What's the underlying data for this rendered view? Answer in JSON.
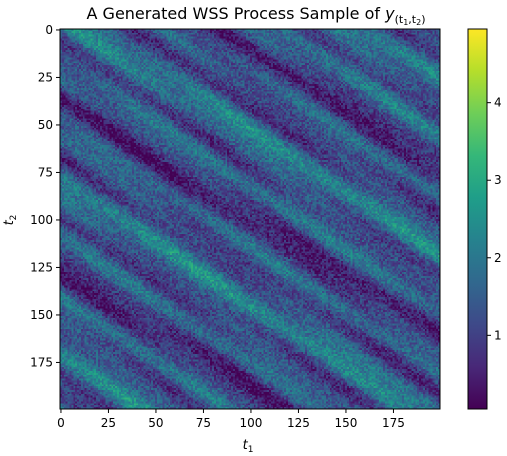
{
  "chart_data": {
    "type": "heatmap",
    "title": {
      "prefix": "A Generated WSS Process Sample of ",
      "var": "y",
      "sub": "(t",
      "sub1": "1",
      "comma": ",t",
      "sub2": "2",
      "close": ")"
    },
    "xlabel": {
      "var": "t",
      "sub": "1"
    },
    "ylabel": {
      "var": "t",
      "sub": "2"
    },
    "xlim": [
      0,
      199
    ],
    "ylim": [
      0,
      199
    ],
    "y_inverted": true,
    "xticks": [
      0,
      25,
      50,
      75,
      100,
      125,
      150,
      175
    ],
    "yticks": [
      0,
      25,
      50,
      75,
      100,
      125,
      150,
      175
    ],
    "colormap": "viridis",
    "colorbar": {
      "min": 0.05,
      "max": 4.95,
      "ticks": [
        1,
        2,
        3,
        4
      ]
    },
    "grid": false,
    "pattern": "diagonal streaks running from upper-left to lower-right; values mostly between 0.5 and 2.5 with occasional peaks near 3"
  },
  "colors": {
    "viridis": [
      "#440154",
      "#482878",
      "#3e4989",
      "#31688e",
      "#26828e",
      "#1f9e89",
      "#35b779",
      "#6ece58",
      "#b5de2b",
      "#fde725"
    ]
  }
}
